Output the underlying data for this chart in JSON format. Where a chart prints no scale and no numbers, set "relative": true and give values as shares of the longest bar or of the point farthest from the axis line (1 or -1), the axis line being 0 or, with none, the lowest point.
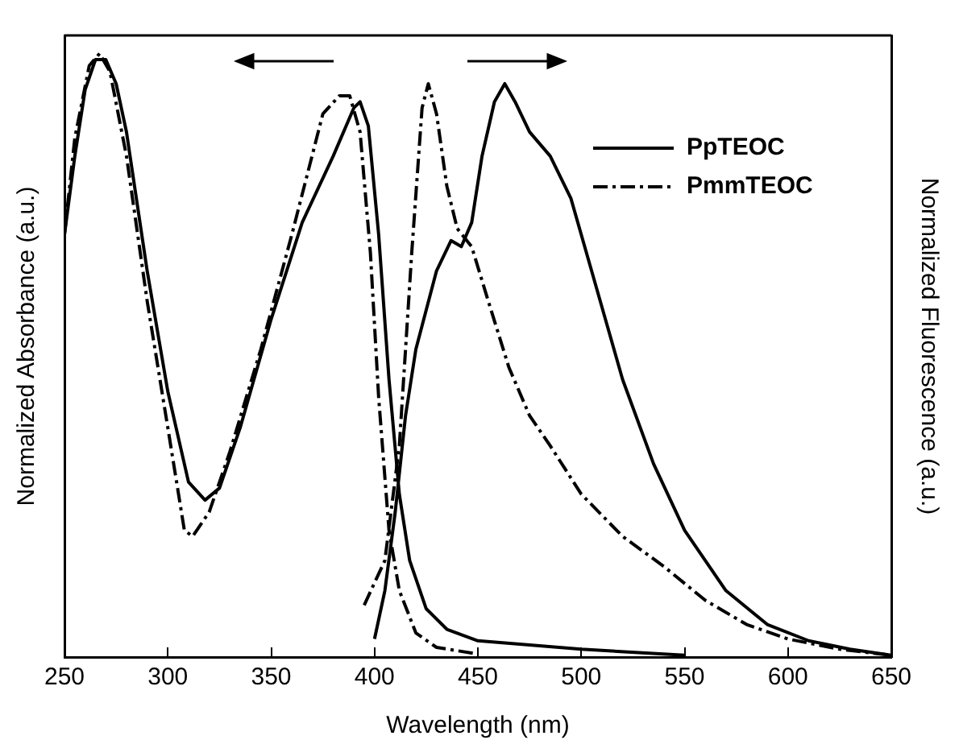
{
  "chart_data": {
    "type": "line",
    "relative": true,
    "xlabel": "Wavelength (nm)",
    "ylabel": "Normalized Absorbance (a.u.)",
    "y2label": "Normalized Fluorescence (a.u.)",
    "xlim": [
      250,
      650
    ],
    "xticks": [
      250,
      300,
      350,
      400,
      450,
      500,
      550,
      600,
      650
    ],
    "grid": false,
    "legend": "top right",
    "marker": "none",
    "series": [
      {
        "name": "PpTEOC",
        "color": "#000000",
        "line_style": "solid",
        "x": [
          250,
          255,
          260,
          265,
          270,
          275,
          280,
          290,
          300,
          310,
          318,
          325,
          335,
          350,
          365,
          380,
          390,
          393,
          397,
          402,
          407,
          412,
          417,
          425,
          435,
          450,
          500,
          550,
          null,
          400,
          405,
          410,
          415,
          420,
          430,
          437,
          442,
          447,
          452,
          458,
          463,
          468,
          475,
          485,
          495,
          505,
          520,
          535,
          550,
          570,
          590,
          610,
          630,
          650
        ],
        "values": [
          0.7,
          0.83,
          0.94,
          0.99,
          0.99,
          0.95,
          0.87,
          0.64,
          0.44,
          0.29,
          0.26,
          0.28,
          0.38,
          0.56,
          0.72,
          0.83,
          0.91,
          0.92,
          0.88,
          0.7,
          0.46,
          0.27,
          0.16,
          0.08,
          0.046,
          0.027,
          0.013,
          0.003,
          null,
          0.03,
          0.11,
          0.24,
          0.4,
          0.51,
          0.64,
          0.69,
          0.68,
          0.72,
          0.83,
          0.92,
          0.95,
          0.92,
          0.87,
          0.83,
          0.76,
          0.64,
          0.46,
          0.32,
          0.21,
          0.11,
          0.054,
          0.027,
          0.013,
          0.003
        ]
      },
      {
        "name": "PmmTEOC",
        "color": "#000000",
        "line_style": "dashed",
        "x": [
          250,
          255,
          262,
          267,
          272,
          280,
          290,
          300,
          308,
          312,
          320,
          330,
          345,
          360,
          375,
          383,
          388,
          393,
          398,
          402,
          407,
          412,
          420,
          430,
          450,
          null,
          395,
          405,
          412,
          418,
          423,
          426,
          430,
          435,
          440,
          447,
          455,
          465,
          475,
          485,
          500,
          520,
          540,
          560,
          580,
          600,
          625,
          650
        ],
        "values": [
          0.7,
          0.86,
          0.98,
          1,
          0.97,
          0.83,
          0.59,
          0.38,
          0.21,
          0.2,
          0.24,
          0.34,
          0.51,
          0.7,
          0.9,
          0.93,
          0.93,
          0.87,
          0.67,
          0.43,
          0.21,
          0.11,
          0.04,
          0.016,
          0.005,
          null,
          0.086,
          0.16,
          0.35,
          0.67,
          0.91,
          0.95,
          0.9,
          0.78,
          0.71,
          0.68,
          0.59,
          0.48,
          0.4,
          0.35,
          0.27,
          0.2,
          0.15,
          0.094,
          0.054,
          0.03,
          0.013,
          0.003
        ]
      }
    ]
  }
}
